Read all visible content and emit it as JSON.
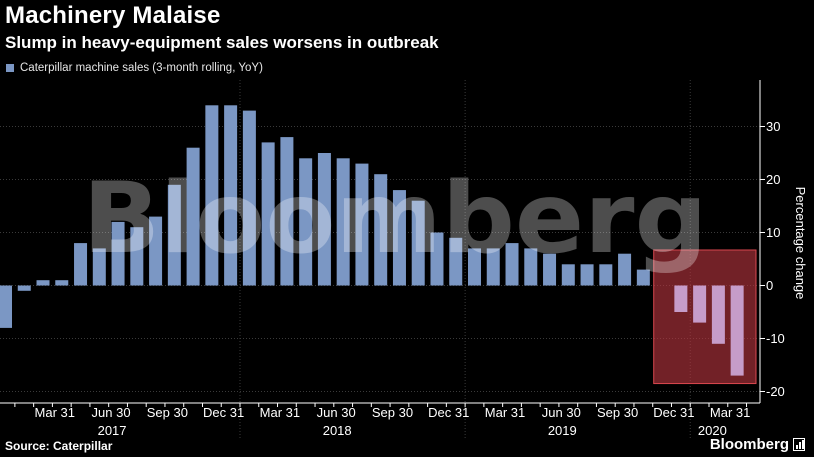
{
  "header": {
    "title": "Machinery Malaise",
    "subtitle": "Slump in heavy-equipment sales worsens in outbreak"
  },
  "footer": {
    "source": "Source: Caterpillar",
    "brand": "Bloomberg"
  },
  "watermark": "Bloomberg",
  "colors": {
    "bar": "#7b97c4",
    "highlight_bar": "#c69cc9",
    "highlight_box": "#b8363f",
    "background": "#000000",
    "grid": "#3a3a3a"
  },
  "chart_data": {
    "type": "bar",
    "title": "Machinery Malaise",
    "subtitle": "Slump in heavy-equipment sales worsens in outbreak",
    "ylabel": "Percentage change",
    "xlabel": "",
    "ylim": [
      -22,
      38
    ],
    "yticks": [
      -20,
      -10,
      0,
      10,
      20,
      30
    ],
    "ytick_labels": [
      "-20",
      "-10",
      "0",
      "10",
      "20",
      "30"
    ],
    "grid": true,
    "legend_position": "top-left",
    "series": [
      {
        "name": "Caterpillar machine sales (3-month rolling, YoY)",
        "values": [
          -8,
          -1,
          1,
          1,
          8,
          7,
          12,
          11,
          13,
          19,
          26,
          34,
          34,
          33,
          27,
          28,
          24,
          25,
          24,
          23,
          21,
          18,
          16,
          10,
          9,
          7,
          7,
          8,
          7,
          6,
          4,
          4,
          4,
          6,
          3,
          0,
          -5,
          -7,
          -11,
          -17
        ]
      }
    ],
    "months": [
      "Dec 2016",
      "Jan 2017",
      "Feb 2017",
      "Mar 2017",
      "Apr 2017",
      "May 2017",
      "Jun 2017",
      "Jul 2017",
      "Aug 2017",
      "Sep 2017",
      "Oct 2017",
      "Nov 2017",
      "Dec 2017",
      "Jan 2018",
      "Feb 2018",
      "Mar 2018",
      "Apr 2018",
      "May 2018",
      "Jun 2018",
      "Jul 2018",
      "Aug 2018",
      "Sep 2018",
      "Oct 2018",
      "Nov 2018",
      "Dec 2018",
      "Jan 2019",
      "Feb 2019",
      "Mar 2019",
      "Apr 2019",
      "May 2019",
      "Jun 2019",
      "Jul 2019",
      "Aug 2019",
      "Sep 2019",
      "Oct 2019",
      "Nov 2019",
      "Dec 2019",
      "Jan 2020",
      "Feb 2020",
      "Mar 2020"
    ],
    "xtick_labels": [
      "Mar 31",
      "Jun 30",
      "Sep 30",
      "Dec 31",
      "Mar 31",
      "Jun 30",
      "Sep 30",
      "Dec 31",
      "Mar 31",
      "Jun 30",
      "Sep 30",
      "Dec 31",
      "Mar 31"
    ],
    "xtick_month_index": [
      3,
      6,
      9,
      12,
      15,
      18,
      21,
      24,
      27,
      30,
      33,
      36,
      39
    ],
    "years": [
      {
        "label": "2017",
        "center_index": 6
      },
      {
        "label": "2018",
        "center_index": 18
      },
      {
        "label": "2019",
        "center_index": 30
      },
      {
        "label": "2020",
        "center_index": 38
      }
    ],
    "year_boundaries_index": [
      12.5,
      24.5,
      36.5
    ],
    "highlight": {
      "from_index": 35,
      "to_index": 39,
      "ymin": -18.5,
      "ymax": 6.7
    }
  }
}
